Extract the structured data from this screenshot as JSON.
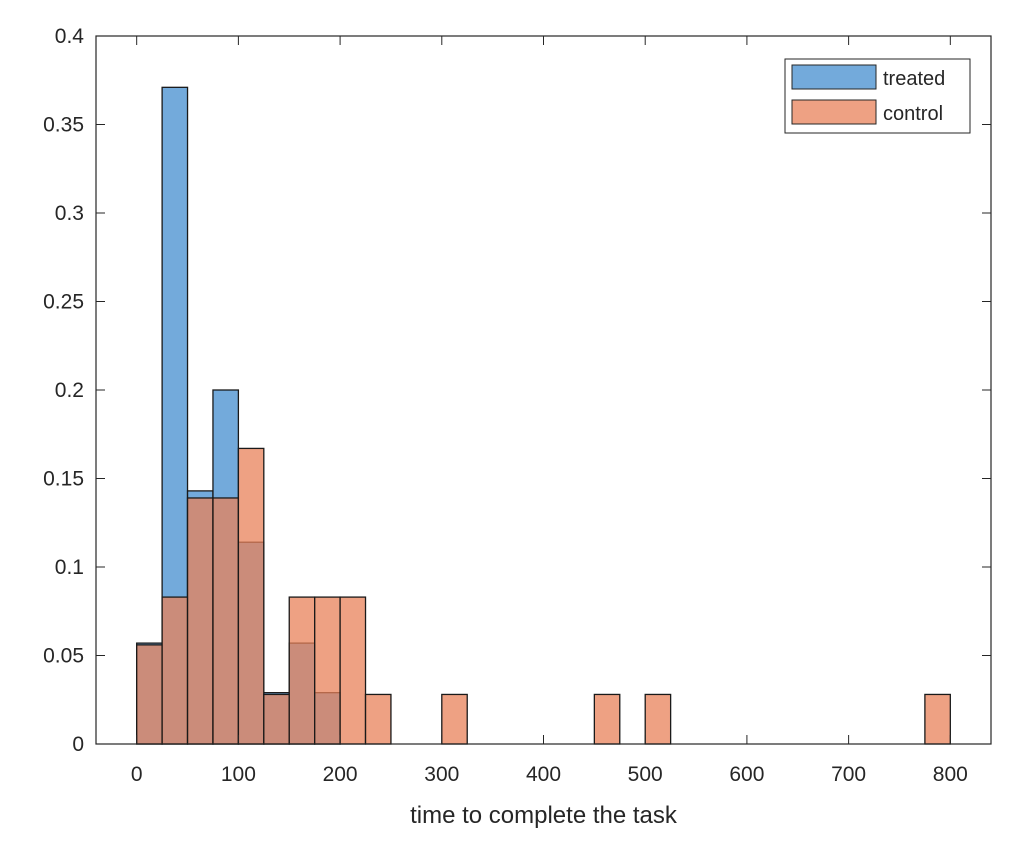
{
  "chart_data": {
    "type": "bar",
    "subtype": "overlapping-histogram",
    "title": "",
    "xlabel": "time to complete the task",
    "ylabel": "",
    "xlim": [
      -40,
      840
    ],
    "ylim": [
      0,
      0.4
    ],
    "x_ticks": [
      0,
      100,
      200,
      300,
      400,
      500,
      600,
      700,
      800
    ],
    "y_ticks": [
      0,
      0.05,
      0.1,
      0.15,
      0.2,
      0.25,
      0.3,
      0.35,
      0.4
    ],
    "x_tick_labels": [
      "0",
      "100",
      "200",
      "300",
      "400",
      "500",
      "600",
      "700",
      "800"
    ],
    "y_tick_labels": [
      "0",
      "0.05",
      "0.1",
      "0.15",
      "0.2",
      "0.25",
      "0.3",
      "0.35",
      "0.4"
    ],
    "bin_width": 25,
    "grid": false,
    "legend_position": "top-right",
    "series": [
      {
        "name": "treated",
        "color": "#5b9bd5",
        "opacity": 0.85,
        "bins": [
          {
            "x0": 0,
            "value": 0.057
          },
          {
            "x0": 25,
            "value": 0.371
          },
          {
            "x0": 50,
            "value": 0.143
          },
          {
            "x0": 75,
            "value": 0.2
          },
          {
            "x0": 100,
            "value": 0.114
          },
          {
            "x0": 125,
            "value": 0.029
          },
          {
            "x0": 150,
            "value": 0.057
          },
          {
            "x0": 175,
            "value": 0.029
          }
        ]
      },
      {
        "name": "control",
        "color": "#e8825a",
        "opacity": 0.75,
        "bins": [
          {
            "x0": 0,
            "value": 0.056
          },
          {
            "x0": 25,
            "value": 0.083
          },
          {
            "x0": 50,
            "value": 0.139
          },
          {
            "x0": 75,
            "value": 0.139
          },
          {
            "x0": 100,
            "value": 0.167
          },
          {
            "x0": 125,
            "value": 0.028
          },
          {
            "x0": 150,
            "value": 0.083
          },
          {
            "x0": 175,
            "value": 0.083
          },
          {
            "x0": 200,
            "value": 0.083
          },
          {
            "x0": 225,
            "value": 0.028
          },
          {
            "x0": 300,
            "value": 0.028
          },
          {
            "x0": 450,
            "value": 0.028
          },
          {
            "x0": 500,
            "value": 0.028
          },
          {
            "x0": 775,
            "value": 0.028
          }
        ]
      }
    ]
  }
}
